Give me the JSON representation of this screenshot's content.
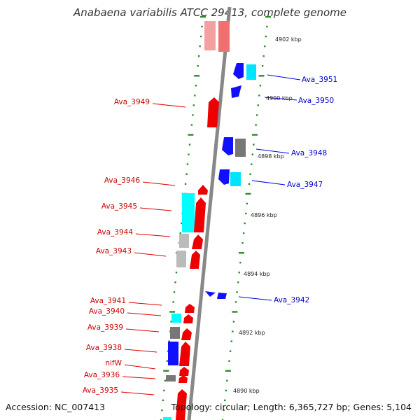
{
  "title": "Anabaena variabilis ATCC 29413, complete genome",
  "accession": "Accession: NC_007413",
  "topology": "Topology: circular; Length: 6,365,727 bp; Genes: 5,104",
  "colors": {
    "forward": "#ff0000",
    "reverse": "#0000ff",
    "cyan": "#00ffff",
    "gray": "#888888",
    "tick": "#2e8b2e",
    "backbone": "#888888",
    "label_forward": "#cc0000",
    "label_reverse": "#0000cc"
  },
  "scale_labels": [
    "4902 kbp",
    "4900 kbp",
    "4898 kbp",
    "4896 kbp",
    "4894 kbp",
    "4892 kbp",
    "4890 kbp"
  ],
  "genes_left": [
    "Ava_3949",
    "Ava_3946",
    "Ava_3945",
    "Ava_3944",
    "Ava_3943",
    "Ava_3941",
    "Ava_3940",
    "Ava_3939",
    "Ava_3938",
    "nifW",
    "Ava_3936",
    "Ava_3935"
  ],
  "genes_right": [
    "Ava_3951",
    "Ava_3950",
    "Ava_3948",
    "Ava_3947",
    "Ava_3942"
  ]
}
